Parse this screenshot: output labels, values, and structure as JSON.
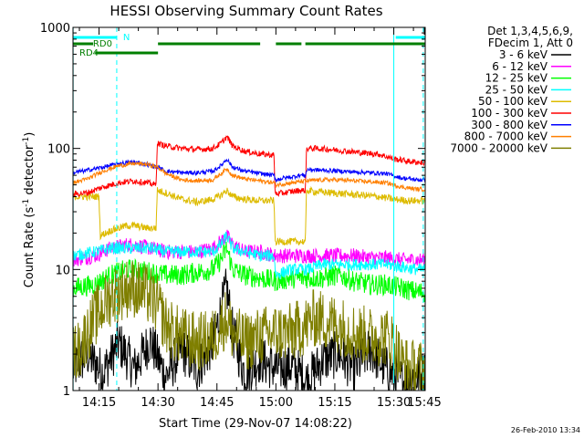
{
  "chart_data": {
    "type": "line",
    "title": "HESSI Observing Summary Count Rates",
    "xlabel": "Start Time (29-Nov-07 14:08:22)",
    "ylabel_main": "Count Rate (s",
    "ylabel_sup1": "-1",
    "ylabel_mid": " detector",
    "ylabel_sup2": "-1",
    "ylabel_end": ")",
    "yscale": "log",
    "ylim": [
      1,
      1000
    ],
    "xlim_minutes": [
      8.37,
      98.0
    ],
    "x_unit_note": "minutes after 14:00 UT",
    "x_ticks": [
      {
        "value": 15,
        "label": "14:15"
      },
      {
        "value": 30,
        "label": "14:30"
      },
      {
        "value": 45,
        "label": "14:45"
      },
      {
        "value": 60,
        "label": "15:00"
      },
      {
        "value": 75,
        "label": "15:15"
      },
      {
        "value": 90,
        "label": "15:30"
      },
      {
        "value": 105,
        "label": "15:45"
      }
    ],
    "y_ticks": [
      {
        "value": 1,
        "label": "1"
      },
      {
        "value": 10,
        "label": "10"
      },
      {
        "value": 100,
        "label": "100"
      },
      {
        "value": 1000,
        "label": "1000"
      }
    ],
    "legend_header": [
      "Det 1,3,4,5,6,9,",
      "FDecim 1, Att 0"
    ],
    "legend_position": "right",
    "series": [
      {
        "name": "3 - 6 keV",
        "color": "#000000",
        "points": [
          [
            8.4,
            1.5
          ],
          [
            12,
            2.0
          ],
          [
            16,
            1.4
          ],
          [
            20,
            2.5
          ],
          [
            24,
            1.5
          ],
          [
            28,
            2.6
          ],
          [
            32,
            1.3
          ],
          [
            36,
            2.2
          ],
          [
            40,
            1.5
          ],
          [
            44,
            2.5
          ],
          [
            46,
            4.5
          ],
          [
            47.5,
            7.0
          ],
          [
            49,
            3.0
          ],
          [
            52,
            1.4
          ],
          [
            56,
            1.8
          ],
          [
            60,
            1.5
          ],
          [
            64,
            1.6
          ],
          [
            68,
            1.2
          ],
          [
            72,
            1.8
          ],
          [
            76,
            2.0
          ],
          [
            80,
            1.5
          ],
          [
            84,
            2.2
          ],
          [
            88,
            1.5
          ],
          [
            92,
            1.2
          ],
          [
            96,
            1.3
          ],
          [
            98,
            1.4
          ]
        ],
        "noise": 0.8
      },
      {
        "name": "6 - 12 keV",
        "color": "#ff00ff",
        "points": [
          [
            8.4,
            12
          ],
          [
            14,
            13
          ],
          [
            18,
            15
          ],
          [
            22,
            16
          ],
          [
            24,
            16
          ],
          [
            28,
            15
          ],
          [
            32,
            14
          ],
          [
            36,
            14
          ],
          [
            40,
            14
          ],
          [
            44,
            15
          ],
          [
            46,
            17
          ],
          [
            47.5,
            19
          ],
          [
            49,
            16
          ],
          [
            52,
            14
          ],
          [
            56,
            14
          ],
          [
            60,
            13
          ],
          [
            64,
            13
          ],
          [
            68,
            13
          ],
          [
            72,
            13
          ],
          [
            76,
            13
          ],
          [
            80,
            13
          ],
          [
            84,
            12.5
          ],
          [
            88,
            12.5
          ],
          [
            92,
            12
          ],
          [
            96,
            12
          ],
          [
            98,
            12
          ]
        ],
        "noise": 0.25
      },
      {
        "name": "12 - 25 keV",
        "color": "#00ff00",
        "points": [
          [
            8.4,
            7.0
          ],
          [
            14,
            7.5
          ],
          [
            18,
            9.0
          ],
          [
            22,
            10
          ],
          [
            24,
            10
          ],
          [
            28,
            9.5
          ],
          [
            32,
            9.0
          ],
          [
            36,
            9.0
          ],
          [
            40,
            9.5
          ],
          [
            44,
            10
          ],
          [
            46,
            12
          ],
          [
            47.5,
            15
          ],
          [
            49,
            10
          ],
          [
            52,
            9.0
          ],
          [
            56,
            8.5
          ],
          [
            60,
            8.0
          ],
          [
            64,
            8.5
          ],
          [
            68,
            8.5
          ],
          [
            72,
            8.5
          ],
          [
            76,
            9.0
          ],
          [
            80,
            8.0
          ],
          [
            84,
            7.5
          ],
          [
            88,
            7.5
          ],
          [
            92,
            7.0
          ],
          [
            96,
            6.5
          ],
          [
            98,
            6.5
          ]
        ],
        "noise": 0.35
      },
      {
        "name": "25 - 50 keV",
        "color": "#00ffff",
        "points": [
          [
            8.4,
            13
          ],
          [
            14,
            14
          ],
          [
            18,
            15
          ],
          [
            22,
            15
          ],
          [
            24,
            15
          ],
          [
            28,
            15
          ],
          [
            32,
            14
          ],
          [
            36,
            14
          ],
          [
            40,
            14
          ],
          [
            44,
            14
          ],
          [
            46,
            16
          ],
          [
            47.5,
            19
          ],
          [
            49,
            15
          ],
          [
            52,
            14
          ],
          [
            56,
            13
          ],
          [
            59.5,
            13
          ],
          [
            60,
            9.0
          ],
          [
            62,
            9.5
          ],
          [
            64,
            10
          ],
          [
            66,
            10
          ],
          [
            68,
            10
          ],
          [
            70,
            10.5
          ],
          [
            72,
            11
          ],
          [
            76,
            11
          ],
          [
            80,
            11
          ],
          [
            84,
            11
          ],
          [
            88,
            11
          ],
          [
            92,
            10.5
          ],
          [
            96,
            10
          ],
          [
            98,
            10
          ]
        ],
        "noise": 0.2
      },
      {
        "name": "50 - 100 keV",
        "color": "#ddbb00",
        "points": [
          [
            8.4,
            40
          ],
          [
            12,
            40
          ],
          [
            15,
            40
          ],
          [
            15.3,
            19
          ],
          [
            18,
            21
          ],
          [
            22,
            23
          ],
          [
            24,
            23
          ],
          [
            27,
            22
          ],
          [
            29.5,
            22
          ],
          [
            29.8,
            45
          ],
          [
            32,
            43
          ],
          [
            36,
            38
          ],
          [
            40,
            36
          ],
          [
            44,
            38
          ],
          [
            46,
            41
          ],
          [
            47.5,
            45
          ],
          [
            49,
            40
          ],
          [
            52,
            38
          ],
          [
            56,
            37
          ],
          [
            59.5,
            37
          ],
          [
            59.8,
            17
          ],
          [
            62,
            17
          ],
          [
            64,
            17
          ],
          [
            66,
            17
          ],
          [
            67.5,
            17
          ],
          [
            67.8,
            45
          ],
          [
            70,
            44
          ],
          [
            74,
            43
          ],
          [
            78,
            42
          ],
          [
            82,
            41
          ],
          [
            86,
            40
          ],
          [
            90,
            38
          ],
          [
            94,
            37
          ],
          [
            98,
            37
          ]
        ],
        "noise": 0.12
      },
      {
        "name": "100 - 300 keV",
        "color": "#ff0000",
        "points": [
          [
            8.4,
            42
          ],
          [
            12,
            43
          ],
          [
            16,
            48
          ],
          [
            20,
            52
          ],
          [
            24,
            54
          ],
          [
            27,
            52
          ],
          [
            29.5,
            50
          ],
          [
            29.8,
            110
          ],
          [
            32,
            105
          ],
          [
            36,
            100
          ],
          [
            40,
            98
          ],
          [
            44,
            100
          ],
          [
            46,
            110
          ],
          [
            47.5,
            125
          ],
          [
            49,
            105
          ],
          [
            52,
            95
          ],
          [
            56,
            90
          ],
          [
            59.5,
            88
          ],
          [
            59.8,
            42
          ],
          [
            62,
            43
          ],
          [
            64,
            44
          ],
          [
            66,
            45
          ],
          [
            67.5,
            45
          ],
          [
            67.8,
            100
          ],
          [
            70,
            100
          ],
          [
            74,
            98
          ],
          [
            78,
            95
          ],
          [
            82,
            92
          ],
          [
            86,
            90
          ],
          [
            90,
            82
          ],
          [
            94,
            78
          ],
          [
            98,
            76
          ]
        ],
        "noise": 0.1
      },
      {
        "name": "300 - 800 keV",
        "color": "#0000ff",
        "points": [
          [
            8.4,
            63
          ],
          [
            12,
            66
          ],
          [
            16,
            70
          ],
          [
            20,
            75
          ],
          [
            24,
            77
          ],
          [
            27,
            74
          ],
          [
            30,
            70
          ],
          [
            32,
            65
          ],
          [
            36,
            63
          ],
          [
            40,
            63
          ],
          [
            44,
            65
          ],
          [
            46,
            72
          ],
          [
            47.5,
            82
          ],
          [
            49,
            70
          ],
          [
            52,
            65
          ],
          [
            56,
            62
          ],
          [
            59.5,
            60
          ],
          [
            60,
            55
          ],
          [
            62,
            57
          ],
          [
            64,
            58
          ],
          [
            66,
            60
          ],
          [
            67.5,
            60
          ],
          [
            68,
            67
          ],
          [
            72,
            66
          ],
          [
            76,
            65
          ],
          [
            80,
            64
          ],
          [
            84,
            63
          ],
          [
            88,
            62
          ],
          [
            92,
            57
          ],
          [
            96,
            55
          ],
          [
            98,
            55
          ]
        ],
        "noise": 0.07
      },
      {
        "name": "800 - 7000 keV",
        "color": "#ff7f00",
        "points": [
          [
            8.4,
            52
          ],
          [
            12,
            56
          ],
          [
            16,
            65
          ],
          [
            20,
            72
          ],
          [
            24,
            75
          ],
          [
            27,
            74
          ],
          [
            30,
            70
          ],
          [
            32,
            62
          ],
          [
            36,
            55
          ],
          [
            40,
            54
          ],
          [
            44,
            55
          ],
          [
            46,
            62
          ],
          [
            47.5,
            68
          ],
          [
            49,
            60
          ],
          [
            52,
            56
          ],
          [
            56,
            54
          ],
          [
            59.5,
            52
          ],
          [
            60,
            50
          ],
          [
            62,
            51
          ],
          [
            64,
            52
          ],
          [
            66,
            53
          ],
          [
            68,
            54
          ],
          [
            72,
            55
          ],
          [
            76,
            55
          ],
          [
            80,
            54
          ],
          [
            84,
            53
          ],
          [
            88,
            52
          ],
          [
            92,
            48
          ],
          [
            96,
            46
          ],
          [
            98,
            46
          ]
        ],
        "noise": 0.07
      },
      {
        "name": "7000 - 20000 keV",
        "color": "#7f7f00",
        "points": [
          [
            8.4,
            2.0
          ],
          [
            10,
            2.2
          ],
          [
            12,
            3.0
          ],
          [
            14,
            4.0
          ],
          [
            16,
            5.0
          ],
          [
            18,
            6.0
          ],
          [
            20,
            6.5
          ],
          [
            22,
            7.0
          ],
          [
            24,
            7.0
          ],
          [
            26,
            6.5
          ],
          [
            28,
            6.0
          ],
          [
            30,
            5.0
          ],
          [
            32,
            3.5
          ],
          [
            34,
            3.0
          ],
          [
            36,
            2.8
          ],
          [
            40,
            2.5
          ],
          [
            44,
            2.7
          ],
          [
            46,
            3.5
          ],
          [
            47.5,
            4.0
          ],
          [
            49,
            3.0
          ],
          [
            52,
            2.5
          ],
          [
            56,
            2.8
          ],
          [
            60,
            3.0
          ],
          [
            64,
            3.0
          ],
          [
            68,
            3.5
          ],
          [
            70,
            4.0
          ],
          [
            72,
            3.8
          ],
          [
            76,
            3.5
          ],
          [
            80,
            3.0
          ],
          [
            84,
            2.8
          ],
          [
            88,
            2.8
          ],
          [
            90,
            2.5
          ],
          [
            92,
            1.7
          ],
          [
            94,
            1.5
          ],
          [
            98,
            1.5
          ]
        ],
        "noise": 1.0
      }
    ],
    "annotations": {
      "saa_label": "N",
      "saa_segments": [
        [
          8.4,
          19.5
        ],
        [
          90.5,
          98
        ]
      ],
      "rd0_label": "RD0",
      "rd0_segments": [
        [
          30,
          56
        ],
        [
          60,
          66.5
        ],
        [
          67.5,
          98
        ]
      ],
      "rd4_label": "RD4",
      "rd4_segments": [
        [
          14,
          30
        ]
      ],
      "night_solid_lines": [
        8.4,
        90
      ],
      "night_dashed_lines": [
        19.5,
        97.5
      ],
      "saa_color": "#00ffff",
      "bar_color": "#007f00"
    },
    "timestamp": "26-Feb-2010 13:34"
  }
}
